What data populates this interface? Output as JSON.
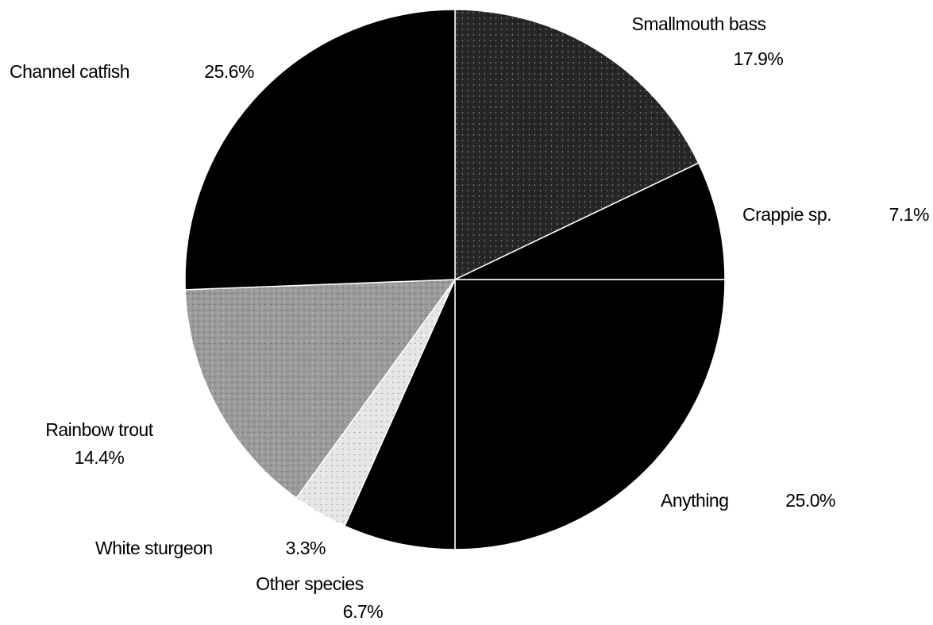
{
  "chart_data": {
    "type": "pie",
    "categories": [
      "Smallmouth bass",
      "Crappie sp.",
      "Anything",
      "Other species",
      "White sturgeon",
      "Rainbow trout",
      "Channel catfish"
    ],
    "values": [
      17.9,
      7.1,
      25.0,
      6.7,
      3.3,
      14.4,
      25.6
    ],
    "value_labels": [
      "17.9%",
      "7.1%",
      "25.0%",
      "6.7%",
      "3.3%",
      "14.4%",
      "25.6%"
    ],
    "colors": [
      "#262626",
      "#000000",
      "#000000",
      "#000000",
      "#e6e6e6",
      "#9a9a9a",
      "#000000"
    ]
  }
}
